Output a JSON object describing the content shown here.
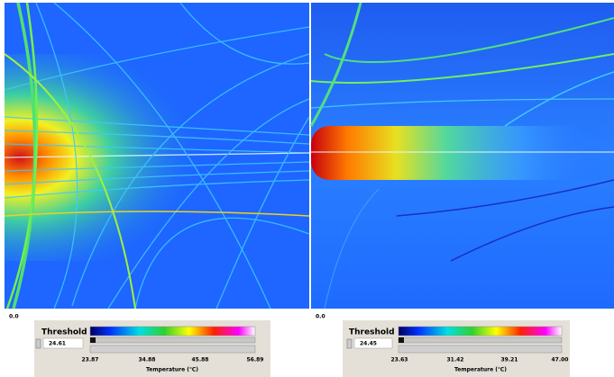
{
  "panels": [
    {
      "origin_label": "0.0",
      "threshold": {
        "label": "Threshold",
        "value": "24.61"
      },
      "scale": {
        "ticks": [
          "23.87",
          "34.88",
          "45.88",
          "56.89"
        ],
        "axis_label": "Temperature (℃)"
      }
    },
    {
      "origin_label": "0.0",
      "threshold": {
        "label": "Threshold",
        "value": "24.45"
      },
      "scale": {
        "ticks": [
          "23.63",
          "31.42",
          "39.21",
          "47.00"
        ],
        "axis_label": "Temperature (℃)"
      }
    }
  ]
}
